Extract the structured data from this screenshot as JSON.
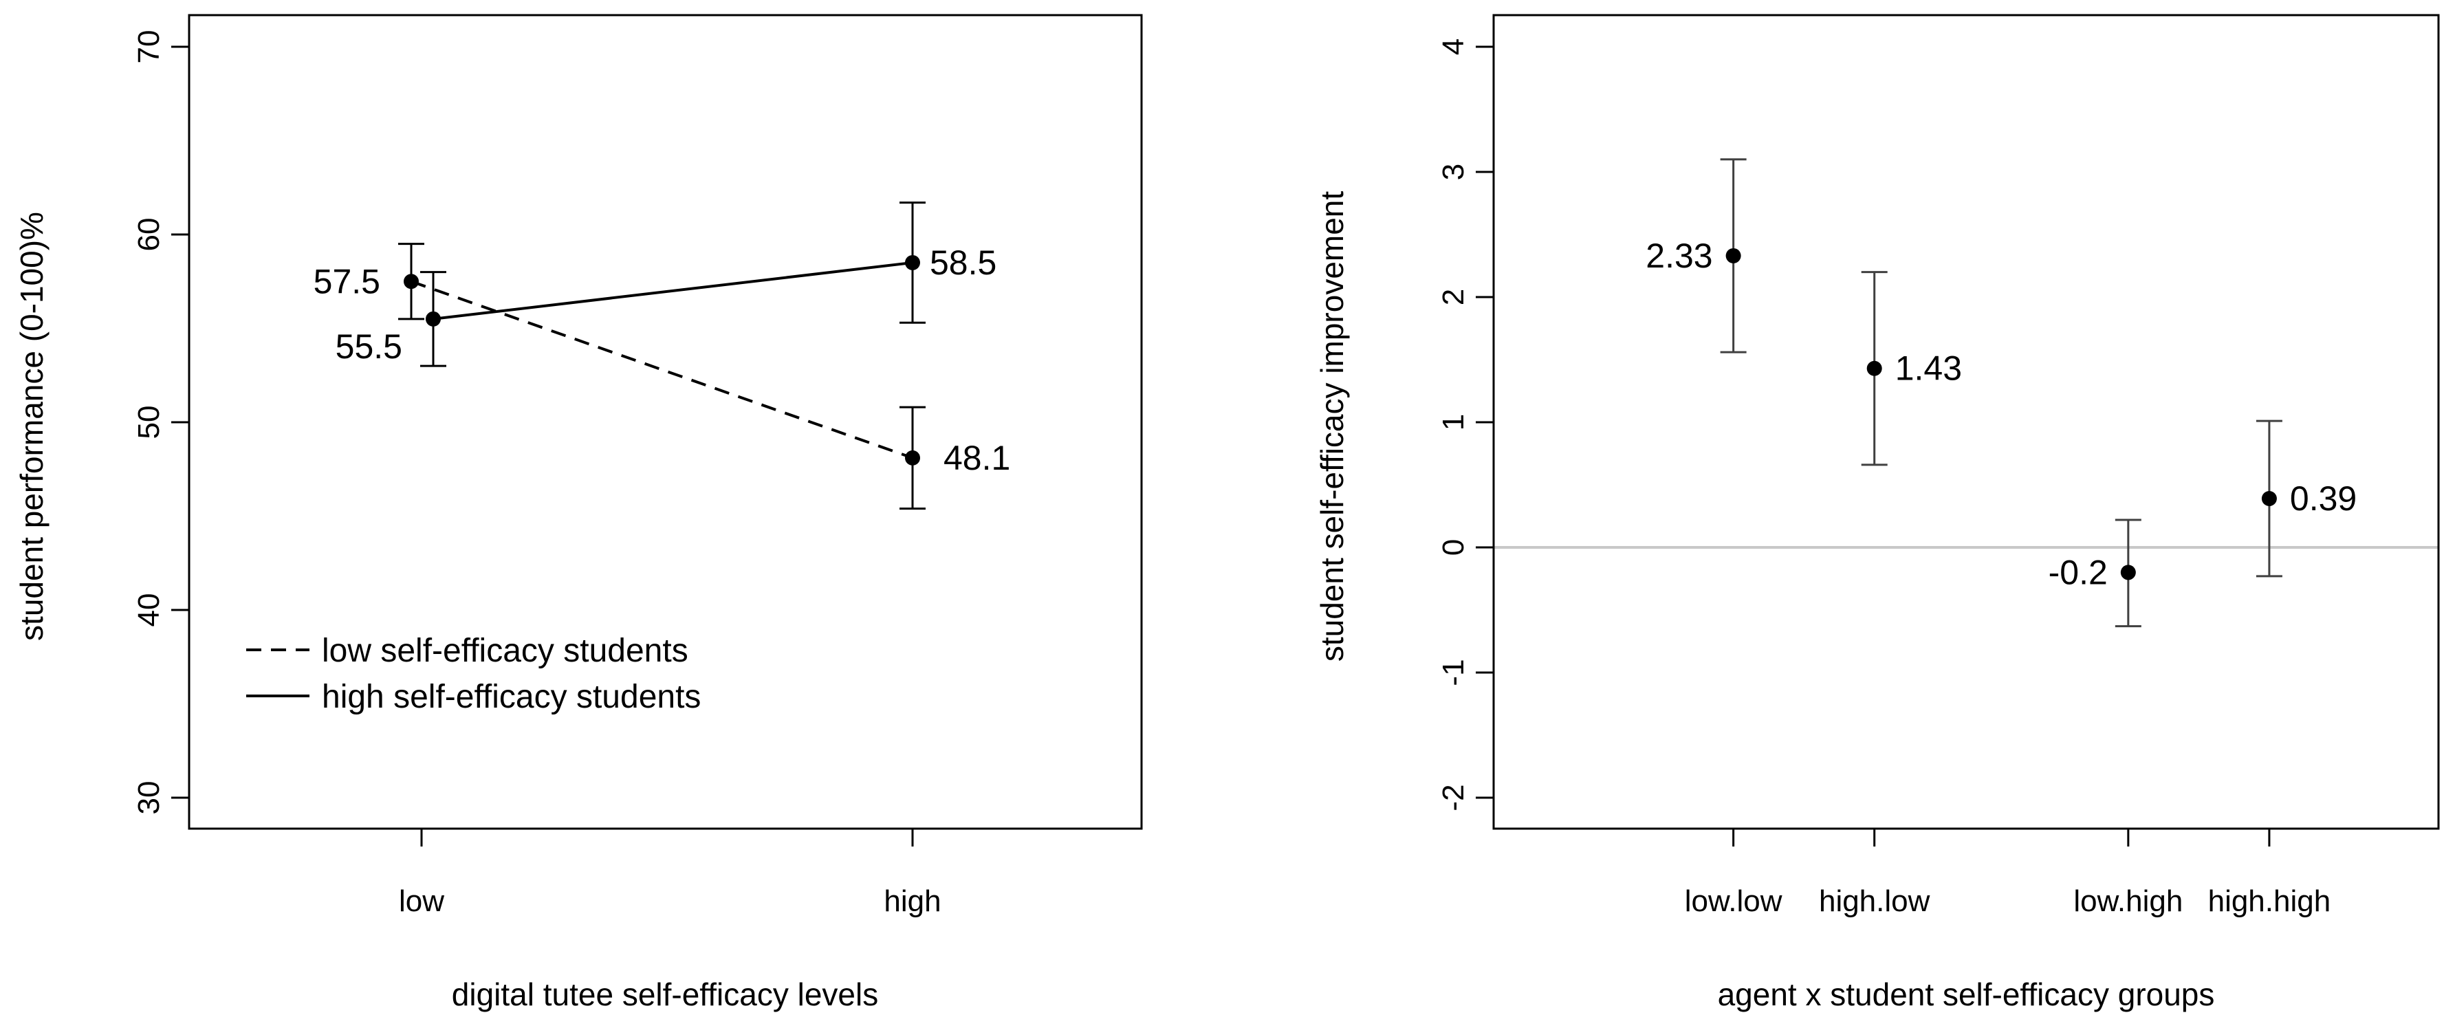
{
  "colors": {
    "ink": "#000000",
    "errorbar_right": "#404040",
    "refline": "#c8c8c8",
    "background": "#ffffff"
  },
  "chart_data": [
    {
      "type": "line",
      "title": "",
      "xlabel": "digital tutee self-efficacy levels",
      "ylabel": "student performance (0-100)%",
      "categories": [
        "low",
        "high"
      ],
      "ylim": [
        30,
        70
      ],
      "yticks": [
        "30",
        "40",
        "50",
        "60",
        "70"
      ],
      "legend_position": "bottom-left",
      "series": [
        {
          "name": "low self-efficacy students",
          "style": "dashed",
          "values": [
            57.5,
            48.1
          ],
          "error_lower": [
            55.5,
            45.4
          ],
          "error_upper": [
            59.5,
            50.8
          ],
          "labels": [
            "57.5",
            "48.1"
          ]
        },
        {
          "name": "high self-efficacy students",
          "style": "solid",
          "values": [
            55.5,
            58.5
          ],
          "error_lower": [
            53.0,
            55.3
          ],
          "error_upper": [
            58.0,
            61.7
          ],
          "labels": [
            "55.5",
            "58.5"
          ]
        }
      ]
    },
    {
      "type": "scatter",
      "title": "",
      "xlabel": "agent x student self-efficacy groups",
      "ylabel": "student self-efficacy improvement",
      "categories": [
        "low.low",
        "high.low",
        "low.high",
        "high.high"
      ],
      "x": [
        1,
        2,
        3.8,
        4.8
      ],
      "xlim": [
        -0.7,
        6.0
      ],
      "ylim": [
        -2.2,
        4.2
      ],
      "yticks": [
        "-2",
        "-1",
        "0",
        "1",
        "2",
        "3",
        "4"
      ],
      "reference_line": 0,
      "values": [
        2.33,
        1.43,
        -0.2,
        0.39
      ],
      "error_lower": [
        1.56,
        0.66,
        -0.63,
        -0.23
      ],
      "error_upper": [
        3.1,
        2.2,
        0.22,
        1.01
      ],
      "labels": [
        "2.33",
        "1.43",
        "-0.2",
        "0.39"
      ]
    }
  ]
}
